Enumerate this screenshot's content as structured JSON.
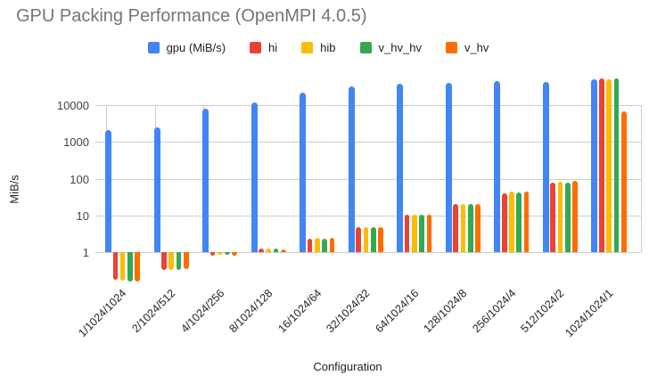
{
  "title": "GPU Packing Performance (OpenMPI 4.0.5)",
  "chart_data": {
    "type": "bar",
    "title": "GPU Packing Performance (OpenMPI 4.0.5)",
    "xlabel": "Configuration",
    "ylabel": "MiB/s",
    "y_scale": "log",
    "y_ticks": [
      1,
      10,
      100,
      1000,
      10000
    ],
    "ylim": [
      0.13,
      60000
    ],
    "grid": true,
    "legend_position": "top",
    "categories": [
      "1/1024/1024",
      "2/1024/512",
      "4/1024/256",
      "8/1024/128",
      "16/1024/64",
      "32/1024/32",
      "64/1024/16",
      "128/1024/8",
      "256/1024/4",
      "512/1024/2",
      "1024/1024/1"
    ],
    "series": [
      {
        "name": "gpu (MiB/s)",
        "color": "#4285F4",
        "values": [
          2100,
          2450,
          8000,
          12100,
          22500,
          32500,
          39000,
          40500,
          45000,
          43000,
          50000
        ]
      },
      {
        "name": "hi",
        "color": "#EA4335",
        "values": [
          0.18,
          0.33,
          0.8,
          1.25,
          2.3,
          4.8,
          10.2,
          20,
          40,
          78,
          54000
        ]
      },
      {
        "name": "hib",
        "color": "#FBBC04",
        "values": [
          0.17,
          0.33,
          0.85,
          1.25,
          2.4,
          4.9,
          10.5,
          21,
          44,
          85,
          52000
        ]
      },
      {
        "name": "v_hv_hv",
        "color": "#34A853",
        "values": [
          0.16,
          0.33,
          0.85,
          1.25,
          2.3,
          4.9,
          10.5,
          21,
          42,
          80,
          54000
        ]
      },
      {
        "name": "v_hv",
        "color": "#FF6D01",
        "values": [
          0.16,
          0.34,
          0.8,
          1.2,
          2.4,
          4.9,
          10.5,
          21,
          45,
          86,
          6700
        ]
      }
    ]
  }
}
